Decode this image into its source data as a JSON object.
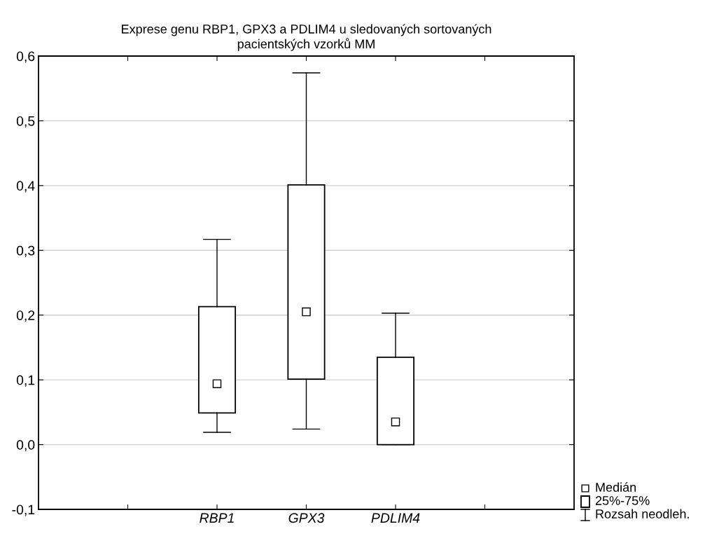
{
  "chart_data": {
    "type": "box",
    "title": "Exprese genu RBP1, GPX3 a PDLIM4 u sledovaných sortovaných\npacientských vzorků MM",
    "categories": [
      null,
      "RBP1",
      "GPX3",
      "PDLIM4",
      null
    ],
    "boxes": [
      null,
      {
        "low": 0.019,
        "q1": 0.049,
        "median": 0.094,
        "q3": 0.213,
        "high": 0.317
      },
      {
        "low": 0.024,
        "q1": 0.101,
        "median": 0.205,
        "q3": 0.401,
        "high": 0.574
      },
      {
        "low": 0.0,
        "q1": 0.0,
        "median": 0.035,
        "q3": 0.135,
        "high": 0.203
      },
      null
    ],
    "annotations": [
      "Medián",
      "25%-75%",
      "Rozsah neodleh."
    ],
    "ylim": [
      -0.1,
      0.6
    ],
    "yticks": [
      {
        "value": -0.1,
        "label": "-0,1"
      },
      {
        "value": 0.0,
        "label": "0,0"
      },
      {
        "value": 0.1,
        "label": "0,1"
      },
      {
        "value": 0.2,
        "label": "0,2"
      },
      {
        "value": 0.3,
        "label": "0,3"
      },
      {
        "value": 0.4,
        "label": "0,4"
      },
      {
        "value": 0.5,
        "label": "0,5"
      },
      {
        "value": 0.6,
        "label": "0,6"
      }
    ],
    "grid": "y",
    "marker": "square"
  }
}
